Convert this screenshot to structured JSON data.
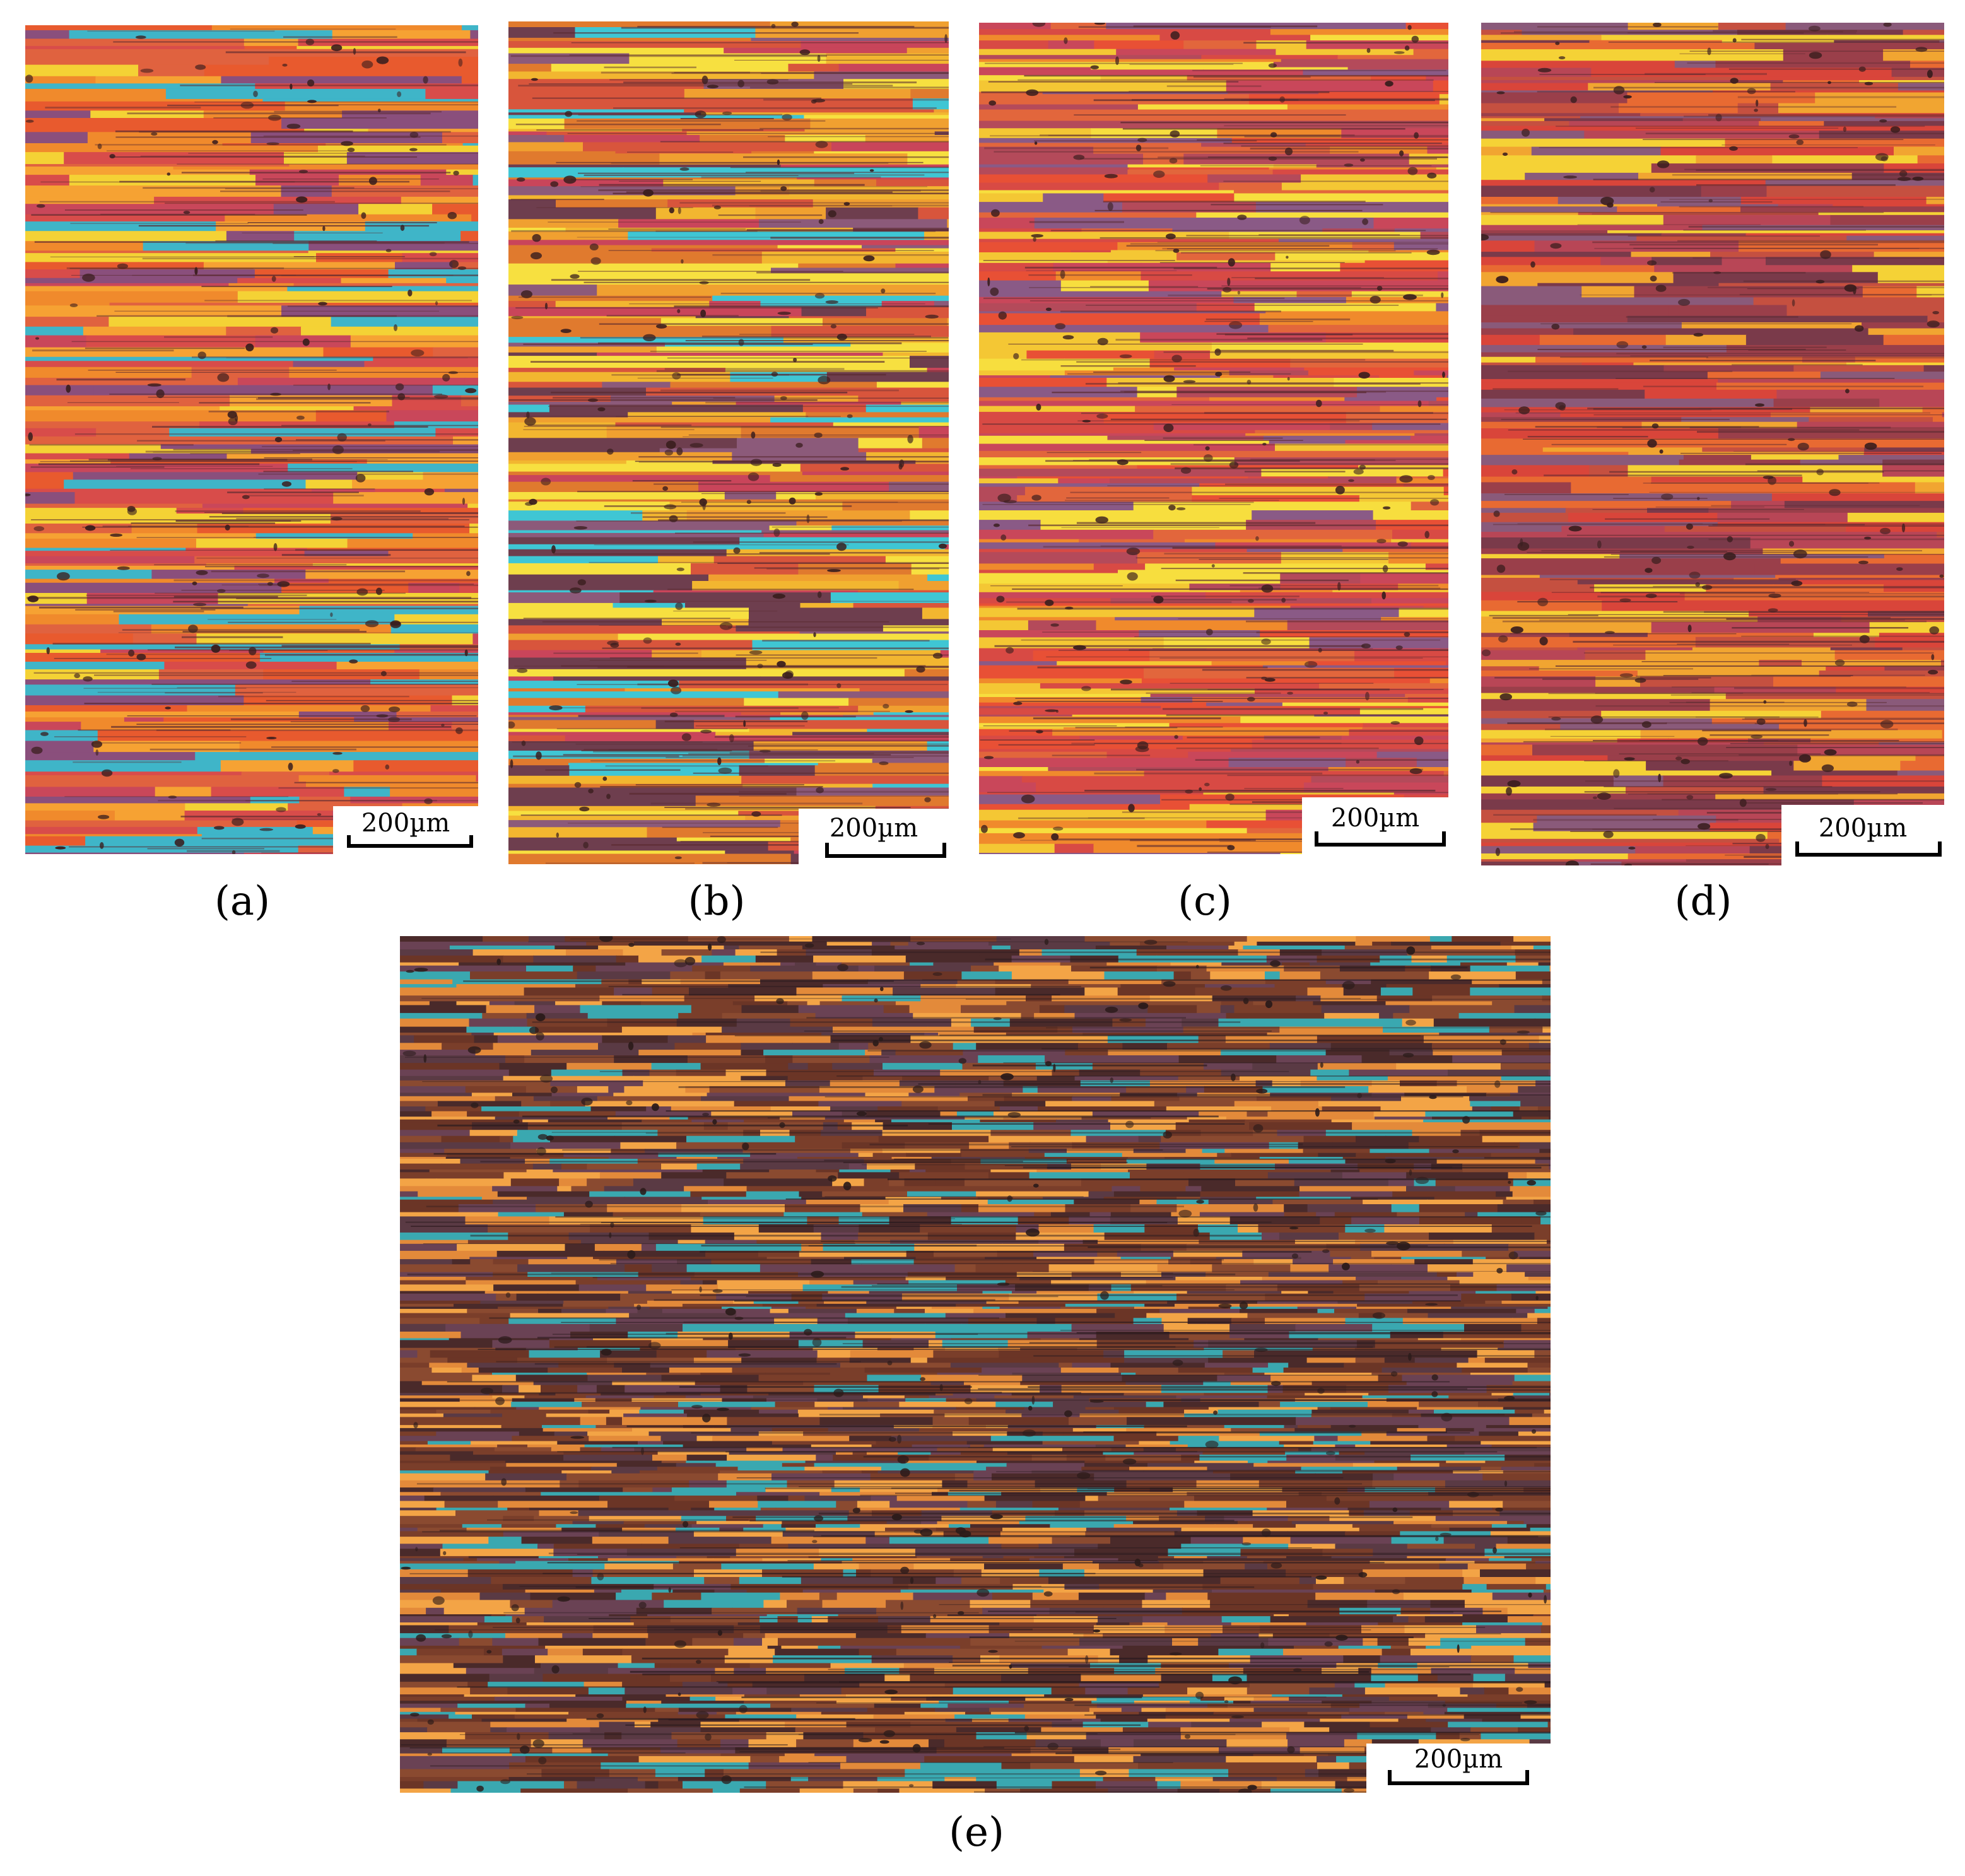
{
  "panels": [
    {
      "id": "a",
      "caption": "(a)",
      "scale_label": "200µm",
      "palette": [
        "#e85a2e",
        "#f08a2c",
        "#f6a233",
        "#c9475a",
        "#8a4f7c",
        "#f4d235",
        "#3fb5c8",
        "#e0623f",
        "#d84c4a"
      ]
    },
    {
      "id": "b",
      "caption": "(b)",
      "scale_label": "200µm",
      "palette": [
        "#f2b630",
        "#f7e040",
        "#e07a2e",
        "#8c5a7a",
        "#3fc6d4",
        "#d8553c",
        "#6e3e4e",
        "#f0a030",
        "#c9455a"
      ]
    },
    {
      "id": "c",
      "caption": "(c)",
      "scale_label": "200µm",
      "palette": [
        "#e85035",
        "#f08a2c",
        "#f4c734",
        "#c9475a",
        "#8a5a86",
        "#e2663c",
        "#f7de3e",
        "#d84a44",
        "#b44a5a"
      ]
    },
    {
      "id": "d",
      "caption": "(d)",
      "scale_label": "200µm",
      "palette": [
        "#d9453a",
        "#e86a32",
        "#b84656",
        "#f1a531",
        "#7a3a4a",
        "#8a5a7a",
        "#f5d236",
        "#c55040",
        "#9a3f4a"
      ]
    },
    {
      "id": "e",
      "caption": "(e)",
      "scale_label": "200µm",
      "palette": [
        "#6b3526",
        "#7a3e2a",
        "#5a3a44",
        "#8a4a30",
        "#e38a3a",
        "#f3a446",
        "#3aa8b0",
        "#4a2a2a",
        "#6a4254"
      ]
    }
  ],
  "colors": {
    "background": "#ffffff",
    "text": "#000000",
    "scale_box": "#ffffff"
  }
}
